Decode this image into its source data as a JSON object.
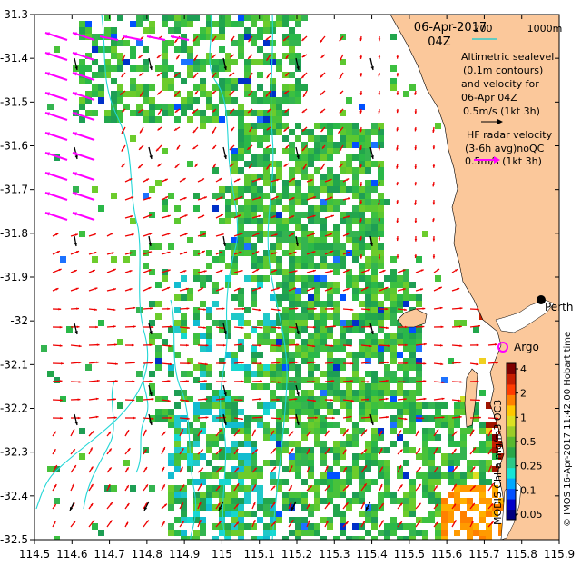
{
  "header": {
    "date": "06-Apr-2017",
    "time": "04Z",
    "depth_labels": [
      "200",
      "1000m"
    ],
    "depth_line_color": "#33cccc"
  },
  "legend": {
    "altimetric_lines": [
      "Altimetric sealevel",
      "(0.1m contours)",
      "and velocity for",
      "06-Apr 04Z",
      "0.5m/s (1kt 3h)"
    ],
    "hf_lines": [
      "HF radar velocity",
      "(3-6h avg)noQC",
      "0.5m/s (1kt 3h)"
    ]
  },
  "labels": {
    "perth": "Perth",
    "argo": "Argo",
    "colorbar_title": "MODIS Chl-a mg/m3 OC3",
    "credit": "© IMOS 16-Apr-2017 11:42:00 Hobart time"
  },
  "axes": {
    "x_ticks": [
      "114.5",
      "114.6",
      "114.7",
      "114.8",
      "114.9",
      "115",
      "115.1",
      "115.2",
      "115.3",
      "115.4",
      "115.5",
      "115.6",
      "115.7",
      "115.8",
      "115.9"
    ],
    "y_ticks": [
      "-31.3",
      "-31.4",
      "-31.5",
      "-31.6",
      "-31.7",
      "-31.8",
      "-31.9",
      "-32",
      "-32.1",
      "-32.2",
      "-32.3",
      "-32.4",
      "-32.5"
    ],
    "x_range": [
      114.5,
      115.9
    ],
    "y_range": [
      -32.5,
      -31.3
    ]
  },
  "colorbar": {
    "tick_labels": [
      "4",
      "2",
      "1",
      "0.5",
      "0.25",
      "0.1",
      "0.05"
    ],
    "colors": [
      "#00007f",
      "#0000c8",
      "#0050ff",
      "#00a8ff",
      "#16e4d6",
      "#2ec886",
      "#2aa648",
      "#58b830",
      "#9ccc28",
      "#dce022",
      "#ffc800",
      "#ff8000",
      "#ff3c00",
      "#c81e00",
      "#7f0000"
    ]
  },
  "colors": {
    "land": "#fbc89b",
    "hf_arrow": "#ff00ff",
    "alt_arrow": "#000000",
    "current_arrow": "#ee0000",
    "contour": "#22d6d6",
    "argo": "#ff00ff"
  }
}
